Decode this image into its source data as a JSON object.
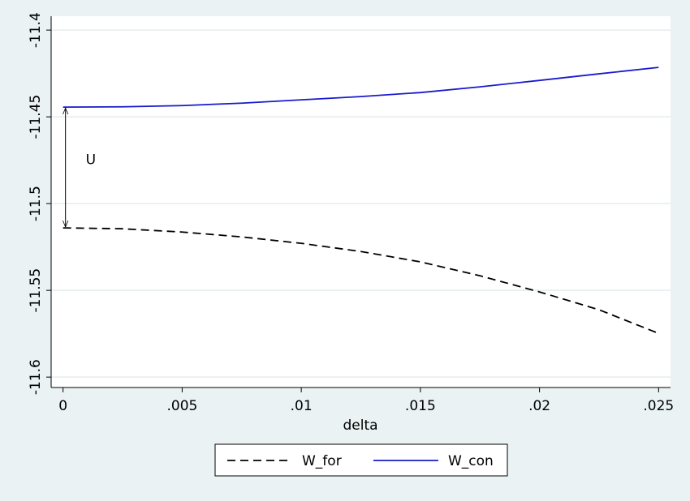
{
  "chart_data": {
    "type": "line",
    "x_label": "delta",
    "x": [
      0,
      0.0025,
      0.005,
      0.0075,
      0.01,
      0.0125,
      0.015,
      0.0175,
      0.02,
      0.0225,
      0.025
    ],
    "series": [
      {
        "name": "W_for",
        "color": "#000000",
        "dash": true,
        "values": [
          -11.514,
          -11.5145,
          -11.5164,
          -11.5192,
          -11.5229,
          -11.5276,
          -11.5336,
          -11.5416,
          -11.5509,
          -11.5612,
          -11.5748
        ]
      },
      {
        "name": "W_con",
        "color": "#1a1acd",
        "dash": false,
        "values": [
          -11.4444,
          -11.4442,
          -11.4435,
          -11.4421,
          -11.4402,
          -11.4383,
          -11.436,
          -11.4327,
          -11.429,
          -11.4252,
          -11.4215
        ]
      }
    ],
    "annotation": "U",
    "xlim": [
      -0.0005,
      0.0255
    ],
    "ylim": [
      -11.606,
      -11.392
    ],
    "xticks": [
      0,
      {
        "value": 0.005,
        "label": ".005"
      },
      {
        "value": 0.01,
        "label": ".01"
      },
      {
        "value": 0.015,
        "label": ".015"
      },
      {
        "value": 0.02,
        "label": ".02"
      },
      {
        "value": 0.025,
        "label": ".025"
      }
    ],
    "yticks": [
      -11.6,
      -11.55,
      -11.5,
      -11.45,
      -11.4
    ],
    "grid": true,
    "legend": "bottom"
  }
}
